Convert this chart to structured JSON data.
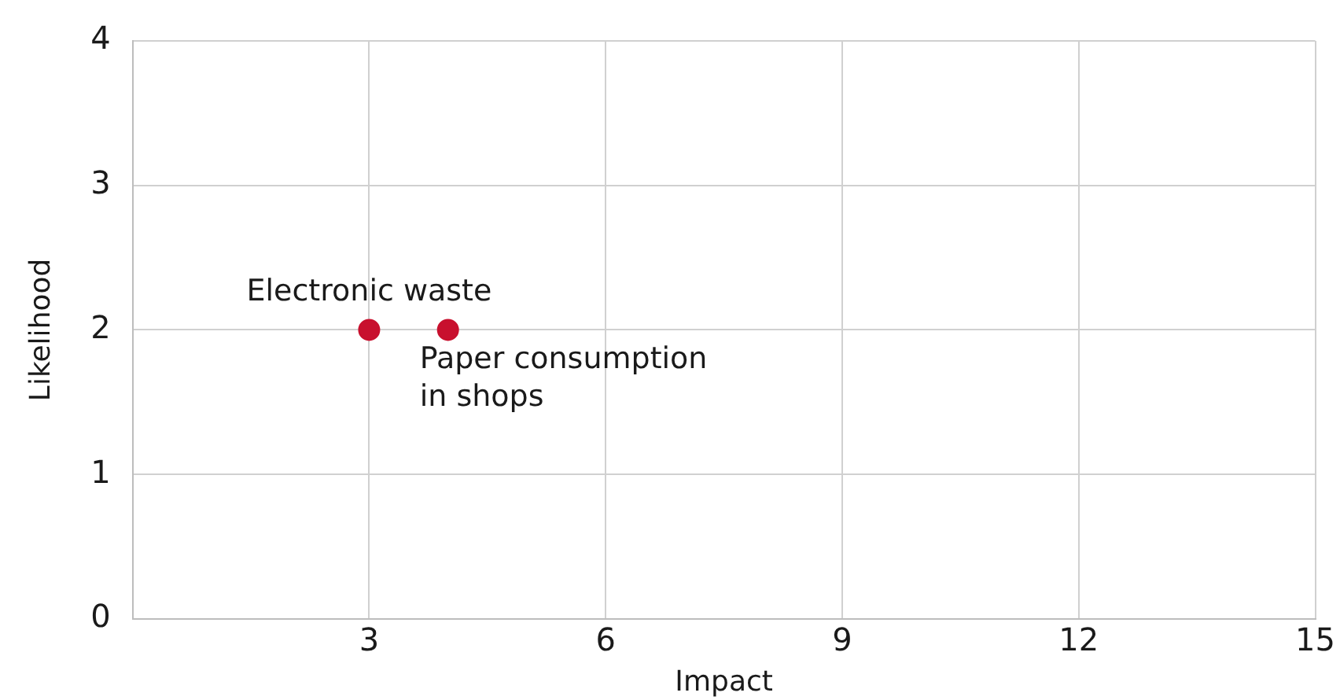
{
  "chart_data": {
    "type": "scatter",
    "xlabel": "Impact",
    "ylabel": "Likelihood",
    "x": [
      3,
      4
    ],
    "values": [
      2,
      2
    ],
    "color": "#c8102e",
    "xlim": [
      0,
      15
    ],
    "xticks": [
      {
        "value": 0,
        "label": null
      },
      3,
      6,
      9,
      12,
      15
    ],
    "ylim": [
      0,
      4
    ],
    "yticks": [
      0,
      1,
      2,
      3,
      4
    ],
    "grid": true,
    "legend": false,
    "marker": "circle",
    "annotations": [
      {
        "text": "Electronic waste",
        "x": 3,
        "y": 2
      },
      {
        "text": "Paper consumption in shops",
        "x": 4,
        "y": 2
      }
    ]
  }
}
